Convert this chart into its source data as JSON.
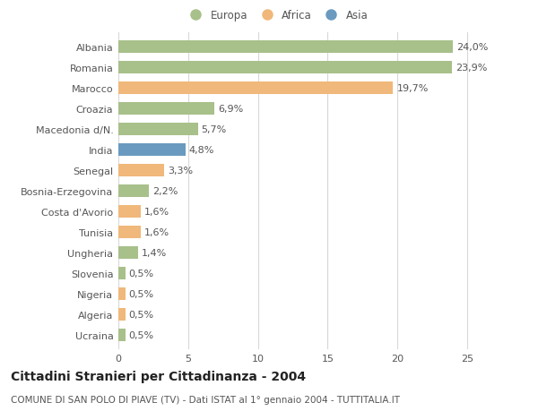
{
  "countries": [
    "Albania",
    "Romania",
    "Marocco",
    "Croazia",
    "Macedonia d/N.",
    "India",
    "Senegal",
    "Bosnia-Erzegovina",
    "Costa d'Avorio",
    "Tunisia",
    "Ungheria",
    "Slovenia",
    "Nigeria",
    "Algeria",
    "Ucraina"
  ],
  "values": [
    24.0,
    23.9,
    19.7,
    6.9,
    5.7,
    4.8,
    3.3,
    2.2,
    1.6,
    1.6,
    1.4,
    0.5,
    0.5,
    0.5,
    0.5
  ],
  "labels": [
    "24,0%",
    "23,9%",
    "19,7%",
    "6,9%",
    "5,7%",
    "4,8%",
    "3,3%",
    "2,2%",
    "1,6%",
    "1,6%",
    "1,4%",
    "0,5%",
    "0,5%",
    "0,5%",
    "0,5%"
  ],
  "colors": [
    "#a8c08a",
    "#a8c08a",
    "#f0b87a",
    "#a8c08a",
    "#a8c08a",
    "#6a9abf",
    "#f0b87a",
    "#a8c08a",
    "#f0b87a",
    "#f0b87a",
    "#a8c08a",
    "#a8c08a",
    "#f0b87a",
    "#f0b87a",
    "#a8c08a"
  ],
  "legend_labels": [
    "Europa",
    "Africa",
    "Asia"
  ],
  "legend_colors": [
    "#a8c08a",
    "#f0b87a",
    "#6a9abf"
  ],
  "title_bold": "Cittadini Stranieri per Cittadinanza - 2004",
  "subtitle": "COMUNE DI SAN POLO DI PIAVE (TV) - Dati ISTAT al 1° gennaio 2004 - TUTTITALIA.IT",
  "xlim": [
    0,
    27
  ],
  "xticks": [
    0,
    5,
    10,
    15,
    20,
    25
  ],
  "background_color": "#ffffff",
  "grid_color": "#d8d8d8",
  "bar_height": 0.6,
  "text_color": "#555555",
  "label_fontsize": 8,
  "tick_fontsize": 8,
  "title_fontsize": 10,
  "subtitle_fontsize": 7.5
}
